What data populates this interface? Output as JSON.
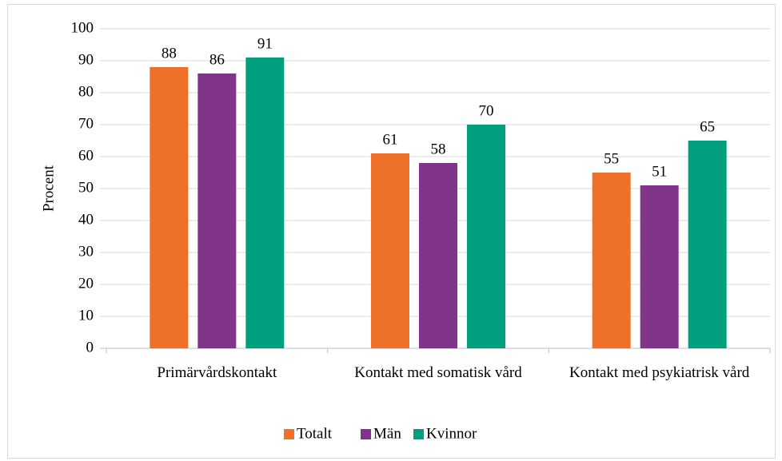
{
  "chart_data": {
    "type": "bar",
    "categories": [
      "Primärvårdskontakt",
      "Kontakt med somatisk vård",
      "Kontakt med psykiatrisk vård"
    ],
    "series": [
      {
        "name": "Totalt",
        "color": "#ef7029",
        "values": [
          88,
          61,
          55
        ]
      },
      {
        "name": "Män",
        "color": "#80358b",
        "values": [
          86,
          58,
          51
        ]
      },
      {
        "name": "Kvinnor",
        "color": "#00a07e",
        "values": [
          91,
          70,
          65
        ]
      }
    ],
    "y_label": "Procent",
    "ylim": [
      0,
      100
    ],
    "yticks": [
      0,
      10,
      20,
      30,
      40,
      50,
      60,
      70,
      80,
      90,
      100
    ],
    "grid": true,
    "legend": "bottom"
  }
}
